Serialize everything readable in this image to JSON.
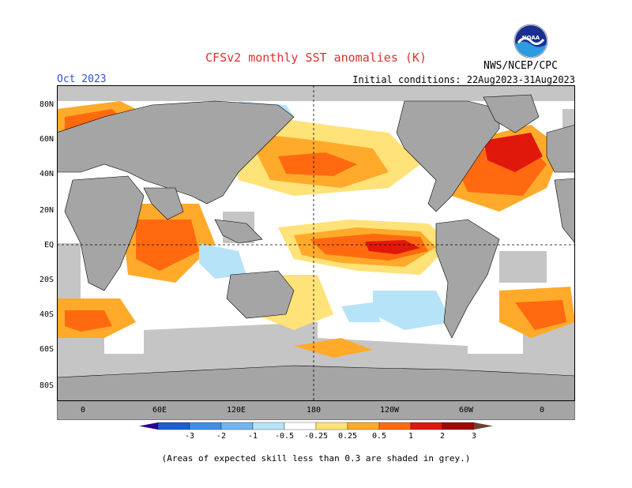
{
  "header": {
    "title": "CFSv2 monthly SST anomalies (K)",
    "valid_month": "Oct 2023",
    "initial_conditions": "Initial conditions: 22Aug2023-31Aug2023",
    "agency": "NWS/NCEP/CPC",
    "logo_text": "NOAA"
  },
  "map": {
    "lat_labels": [
      "80N",
      "60N",
      "40N",
      "20N",
      "EQ",
      "20S",
      "40S",
      "60S",
      "80S"
    ],
    "lon_labels": [
      "0",
      "60E",
      "120E",
      "180",
      "120W",
      "60W",
      "0"
    ]
  },
  "colorbar": {
    "labels": [
      "-3",
      "-2",
      "-1",
      "-0.5",
      "-0.25",
      "0.25",
      "0.5",
      "1",
      "2",
      "3"
    ],
    "colors": [
      "#2a008f",
      "#1c5fd0",
      "#3f8fe6",
      "#6fb5f2",
      "#b6e3f8",
      "#ffffff",
      "#ffe278",
      "#ffaa2a",
      "#ff6a10",
      "#e0180c",
      "#a00808",
      "#6e4030"
    ]
  },
  "footnote": "(Areas of expected skill less than 0.3 are shaded in grey.)",
  "colors": {
    "land": "#a5a5a5",
    "low_skill": "#c5c5c5",
    "ocean": "#ffffff",
    "title": "#e03030",
    "valid": "#3050d0"
  }
}
